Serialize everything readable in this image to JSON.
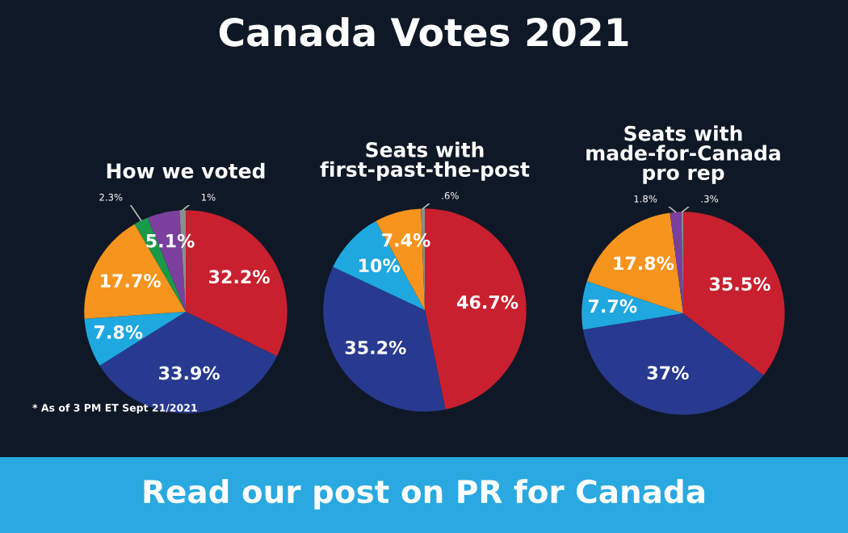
{
  "chart_data": [
    {
      "type": "pie",
      "title": "How we voted",
      "categories": [
        null,
        null,
        null,
        null,
        null,
        null,
        null
      ],
      "values": [
        32.2,
        33.9,
        7.8,
        17.7,
        2.3,
        5.1,
        1
      ],
      "colors": [
        "#c8202f",
        "#283a8f",
        "#1fa8e0",
        "#f7941d",
        "#1a9a48",
        "#7b3f9e",
        "#8c8c8c"
      ],
      "value_labels": [
        "32.2%",
        "33.9%",
        "7.8%",
        "17.7%",
        "2.3%",
        "5.1%",
        "1%"
      ],
      "annotations": [
        "Canada Votes 2021",
        "* As of 3 PM ET Sept 21/2021",
        "Read our post on PR for Canada"
      ]
    },
    {
      "type": "pie",
      "title": "Seats with\nfirst-past-the-post",
      "categories": [
        null,
        null,
        null,
        null,
        null
      ],
      "values": [
        46.7,
        35.2,
        10,
        7.4,
        0.6
      ],
      "colors": [
        "#c8202f",
        "#283a8f",
        "#1fa8e0",
        "#f7941d",
        "#8c8c8c"
      ],
      "value_labels": [
        "46.7%",
        "35.2%",
        "10%",
        "7.4%",
        ".6%"
      ]
    },
    {
      "type": "pie",
      "title": "Seats with\nmade-for-Canada\npro rep",
      "categories": [
        null,
        null,
        null,
        null,
        null,
        null
      ],
      "values": [
        35.5,
        37,
        7.7,
        17.8,
        1.8,
        0.3
      ],
      "colors": [
        "#c8202f",
        "#283a8f",
        "#1fa8e0",
        "#f7941d",
        "#7b3f9e",
        "#8c8c8c"
      ],
      "value_labels": [
        "35.5%",
        "37%",
        "7.7%",
        "17.8%",
        "1.8%",
        ".3%"
      ]
    }
  ]
}
